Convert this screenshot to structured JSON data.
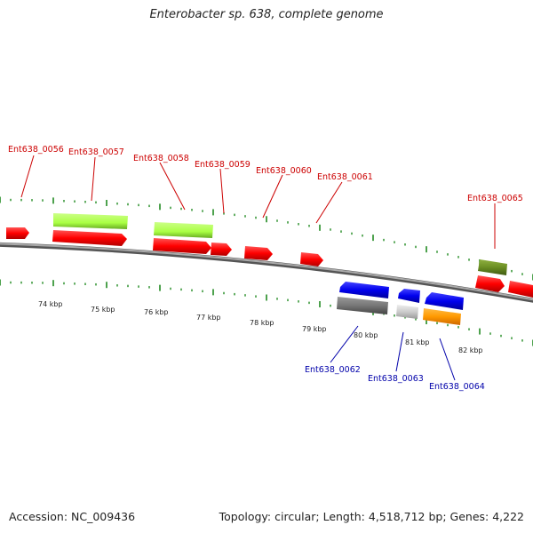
{
  "title": "Enterobacter sp. 638, complete genome",
  "footer": {
    "accession": "Accession: NC_009436",
    "summary": "Topology: circular; Length: 4,518,712 bp; Genes: 4,222"
  },
  "scale_labels": [
    "74 kbp",
    "75 kbp",
    "76 kbp",
    "77 kbp",
    "78 kbp",
    "79 kbp",
    "80 kbp",
    "81 kbp",
    "82 kbp"
  ],
  "gene_labels_top": [
    "Ent638_0056",
    "Ent638_0057",
    "Ent638_0058",
    "Ent638_0059",
    "Ent638_0060",
    "Ent638_0061",
    "Ent638_0065"
  ],
  "gene_labels_bottom": [
    "Ent638_0062",
    "Ent638_0063",
    "Ent638_0064"
  ],
  "colors": {
    "forward_label": "#cc0000",
    "reverse_label": "#0000aa",
    "cds_forward": "#ff0000",
    "cds_reverse": "#0000ee",
    "feature_light_green": "#aaff44",
    "feature_dark_olive": "#6b8e23",
    "feature_grey": "#777777",
    "feature_light_grey": "#cccccc",
    "feature_orange": "#ff9900",
    "tick": "#228b22",
    "backbone": "#888888"
  }
}
